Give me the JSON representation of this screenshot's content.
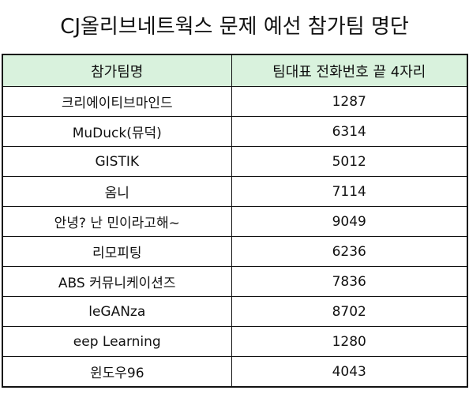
{
  "title": "CJ올리브네트웍스 문제 예선 참가팀 명단",
  "table": {
    "header": [
      "참가팀명",
      "팀대표 전화번호 끝 4자리"
    ],
    "header_bg": "#d9f2dd",
    "rows": [
      [
        "크리에이티브마인드",
        "1287"
      ],
      [
        "MuDuck(뮤덕)",
        "6314"
      ],
      [
        "GISTIK",
        "5012"
      ],
      [
        "옴니",
        "7114"
      ],
      [
        "안녕? 난 민이라고해~",
        "9049"
      ],
      [
        "리모피팅",
        "6236"
      ],
      [
        "ABS 커뮤니케이션즈",
        "7836"
      ],
      [
        "leGANza",
        "8702"
      ],
      [
        "eep Learning",
        "1280"
      ],
      [
        "윈도우96",
        "4043"
      ]
    ]
  }
}
